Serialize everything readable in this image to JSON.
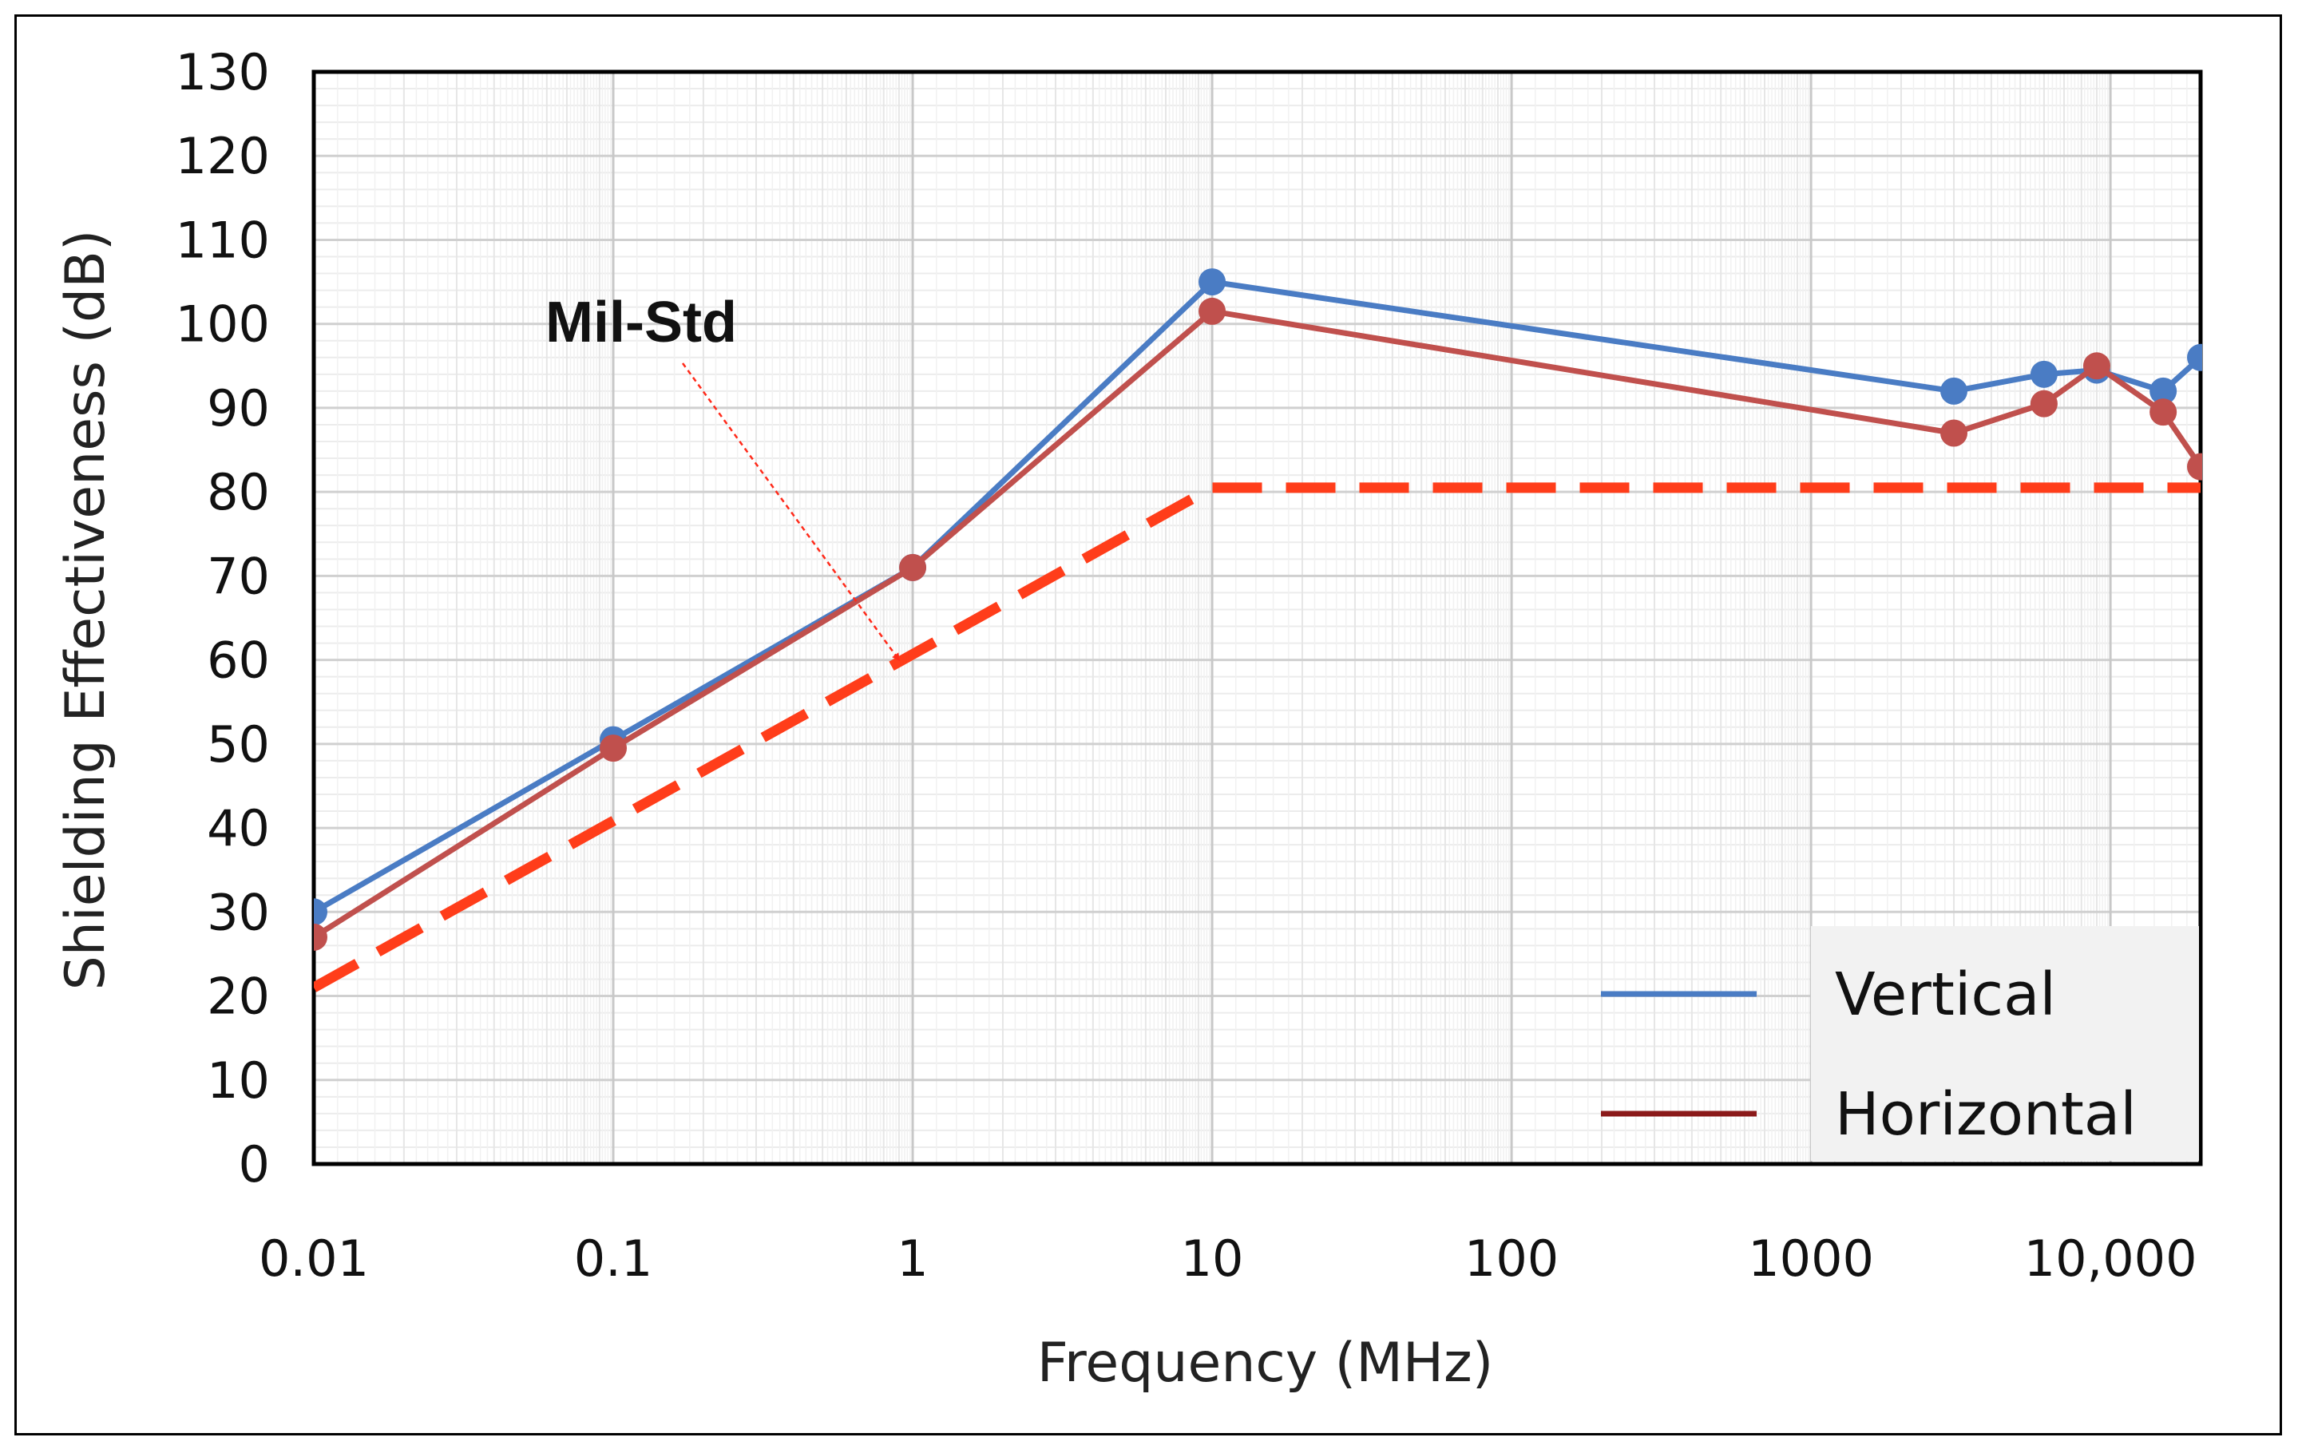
{
  "chart_data": {
    "type": "line",
    "title": "",
    "xlabel": "Frequency (MHz)",
    "ylabel": "Shielding Effectiveness (dB)",
    "xscale": "log",
    "xlim": [
      0.01,
      20000
    ],
    "ylim": [
      0,
      130
    ],
    "ytick_step": 10,
    "yticks": [
      "0",
      "10",
      "20",
      "30",
      "40",
      "50",
      "60",
      "70",
      "80",
      "90",
      "100",
      "110",
      "120",
      "130"
    ],
    "xticks": [
      {
        "value": 0.01,
        "label": "0.01"
      },
      {
        "value": 0.1,
        "label": "0.1"
      },
      {
        "value": 1,
        "label": "1"
      },
      {
        "value": 10,
        "label": "10"
      },
      {
        "value": 100,
        "label": "100"
      },
      {
        "value": 1000,
        "label": "1000"
      },
      {
        "value": 10000,
        "label": "10,000"
      }
    ],
    "grid": true,
    "legend_position": "bottom-right",
    "series": [
      {
        "name": "Vertical",
        "color": "#4a7cc4",
        "style": "solid-markers",
        "x": [
          0.01,
          0.1,
          1,
          10,
          3000,
          6000,
          9000,
          15000,
          20000
        ],
        "y": [
          30,
          50.5,
          71,
          105,
          92,
          94,
          94.5,
          92,
          96
        ]
      },
      {
        "name": "Horizontal",
        "color": "#c0504d",
        "legend_color": "#8b1a1a",
        "style": "solid-markers",
        "x": [
          0.01,
          0.1,
          1,
          10,
          3000,
          6000,
          9000,
          15000,
          20000
        ],
        "y": [
          27,
          49.5,
          71,
          101.5,
          87,
          90.5,
          95,
          89.5,
          83
        ]
      },
      {
        "name": "Mil-Std",
        "color": "#ff3d1a",
        "style": "dashed",
        "x": [
          0.01,
          10,
          20000
        ],
        "y": [
          21,
          80.5,
          80.5
        ]
      }
    ],
    "annotations": [
      {
        "text": "Mil-Std",
        "arrow_to": {
          "x": 0.9,
          "y": 60
        },
        "arrow_color": "#ff2a1a"
      }
    ]
  }
}
